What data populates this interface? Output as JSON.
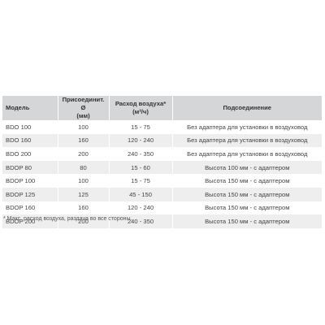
{
  "table": {
    "headers": {
      "model": "Модель",
      "diameter_line1": "Присоединит. Ø",
      "diameter_line2": "(мм)",
      "airflow_line1": "Расход воздуха*",
      "airflow_line2": "(м³/ч)",
      "connection": "Подсоединение"
    },
    "rows": [
      {
        "model": "BDO 100",
        "diameter": "100",
        "airflow": "15 - 75",
        "connection": "Без адаптера для установки в воздуховод"
      },
      {
        "model": "BDO 160",
        "diameter": "160",
        "airflow": "120 - 240",
        "connection": "Без адаптера для установки в воздуховод"
      },
      {
        "model": "BDO 200",
        "diameter": "200",
        "airflow": "240 - 350",
        "connection": "Без адаптера для установки в воздуховод"
      },
      {
        "model": "BDOP 80",
        "diameter": "80",
        "airflow": "15 - 60",
        "connection": "Высота 100 мм - с адаптером"
      },
      {
        "model": "BDOP 100",
        "diameter": "100",
        "airflow": "15 - 75",
        "connection": "Высота 150 мм - с адаптером"
      },
      {
        "model": "BDOP 125",
        "diameter": "125",
        "airflow": "45 - 150",
        "connection": "Высота 150 мм - с адаптером"
      },
      {
        "model": "BDOP 160",
        "diameter": "160",
        "airflow": "120 - 240",
        "connection": "Высота 150 мм - с адаптером"
      },
      {
        "model": "BDOP 200",
        "diameter": "200",
        "airflow": "240 - 350",
        "connection": "Высота 150 мм - с адаптером"
      }
    ]
  },
  "footnote": "* Макс. расход воздуха, раздача во все стороны."
}
